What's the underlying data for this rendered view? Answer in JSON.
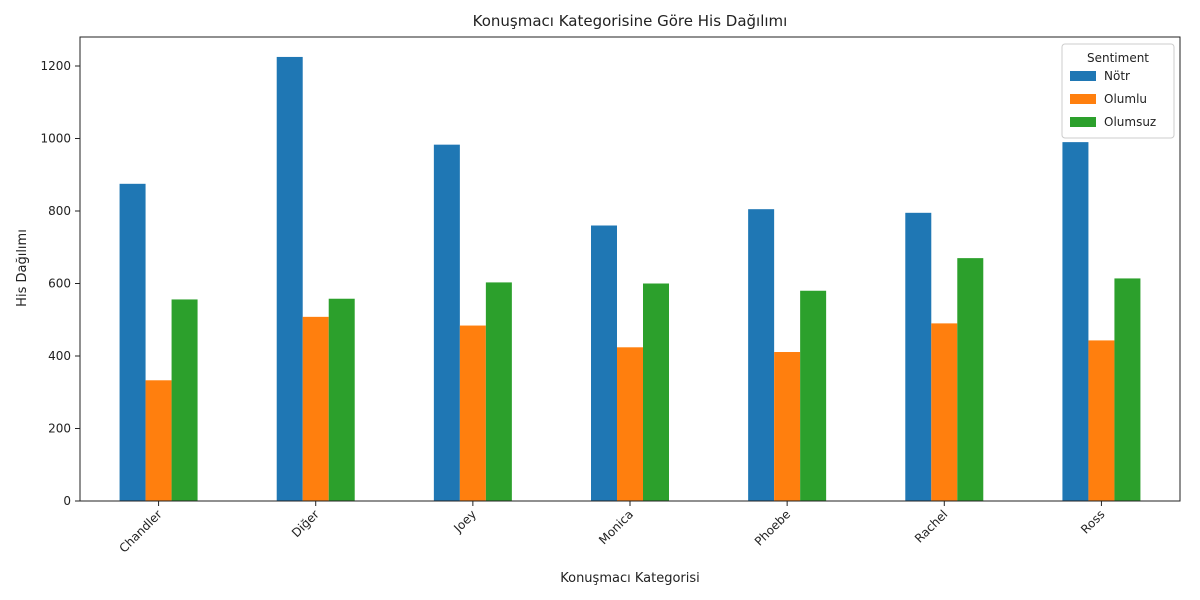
{
  "chart_data": {
    "type": "bar",
    "title": "Konuşmacı Kategorisine Göre His Dağılımı",
    "xlabel": "Konuşmacı Kategorisi",
    "ylabel": "His Dağılımı",
    "categories": [
      "Chandler",
      "Diğer",
      "Joey",
      "Monica",
      "Phoebe",
      "Rachel",
      "Ross"
    ],
    "series": [
      {
        "name": "Nötr",
        "color": "#1f77b4",
        "values": [
          875,
          1225,
          983,
          760,
          805,
          795,
          990
        ]
      },
      {
        "name": "Olumlu",
        "color": "#ff7f0e",
        "values": [
          333,
          508,
          484,
          424,
          411,
          490,
          443
        ]
      },
      {
        "name": "Olumsuz",
        "color": "#2ca02c",
        "values": [
          556,
          558,
          603,
          600,
          580,
          670,
          614
        ]
      }
    ],
    "ylim": [
      0,
      1280
    ],
    "yticks": [
      0,
      200,
      400,
      600,
      800,
      1000,
      1200
    ],
    "grid": false,
    "legend": {
      "title": "Sentiment",
      "placement": "top-right"
    },
    "x_tick_rotation": -45
  }
}
